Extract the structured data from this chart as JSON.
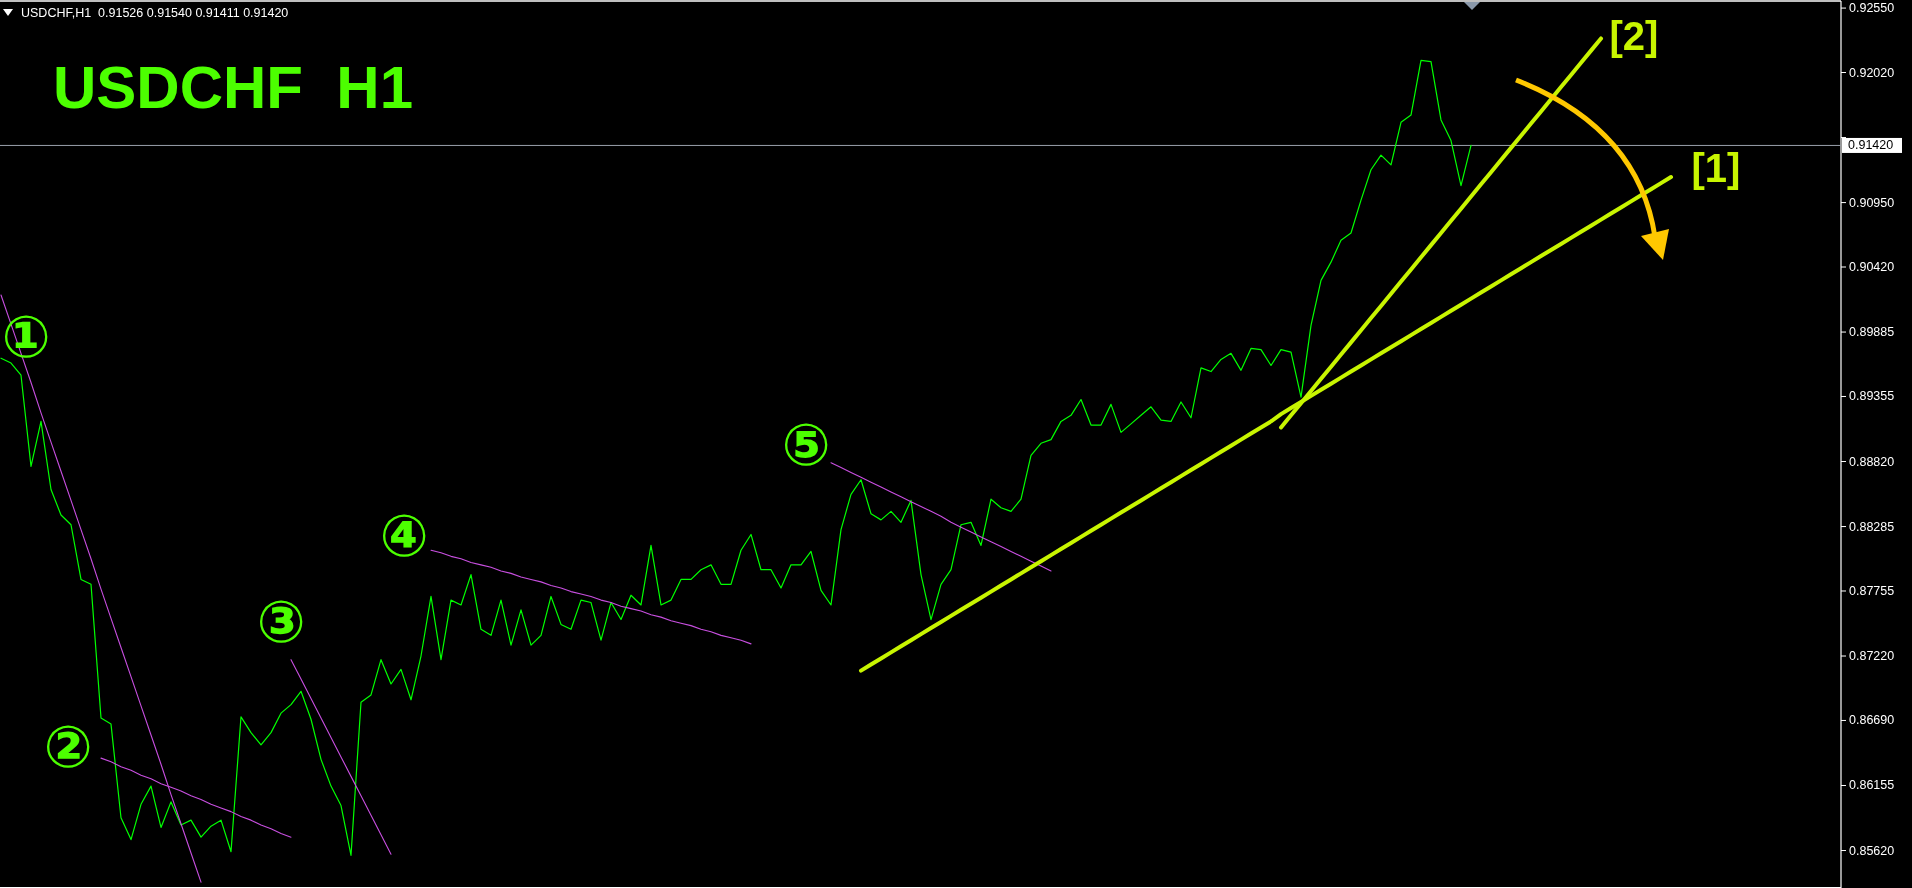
{
  "chart_data": {
    "type": "line",
    "title": "USDCHF  H1",
    "annotations": [
      "USDCHF,H1  0.91526 0.91540 0.91411 0.91420"
    ],
    "categories": [
      null,
      null,
      null,
      null,
      null,
      null,
      null,
      null,
      null,
      null,
      null,
      null,
      null,
      null,
      null,
      null,
      null,
      null,
      null,
      null,
      null,
      null,
      null,
      null,
      null,
      null,
      null,
      null,
      null,
      null,
      null,
      null,
      null,
      null,
      null,
      null,
      null,
      null,
      null,
      null,
      null,
      null,
      null,
      null,
      null,
      null,
      null,
      null,
      null,
      null,
      null,
      null,
      null,
      null,
      null,
      null,
      null,
      null,
      null,
      null,
      null,
      null,
      null,
      null,
      null,
      null,
      null,
      null,
      null,
      null,
      null,
      null,
      null,
      null,
      null,
      null,
      null,
      null,
      null,
      null,
      null,
      null,
      null,
      null,
      null,
      null,
      null,
      null,
      null,
      null,
      null,
      null,
      null,
      null,
      null,
      null,
      null,
      null,
      null,
      null,
      null,
      null,
      null,
      null,
      null,
      null,
      null,
      null,
      null,
      null,
      null,
      null,
      null,
      null,
      null,
      null,
      null,
      null,
      null,
      null,
      null,
      null,
      null,
      null,
      null,
      null,
      null,
      null,
      null,
      null,
      null,
      null,
      null,
      null,
      null,
      null,
      null,
      null,
      null,
      null,
      null,
      null,
      null,
      null,
      null,
      null,
      null,
      null,
      null,
      null,
      null,
      null,
      null,
      null,
      null,
      null,
      null,
      null,
      null,
      null,
      null,
      null,
      null,
      null,
      null,
      null,
      null,
      null,
      null,
      null,
      null,
      null,
      null,
      null,
      null,
      null,
      null,
      null,
      null,
      null,
      null,
      null,
      null,
      null,
      null
    ],
    "series": [
      {
        "color": "#00ff00",
        "values": [
          0.8967,
          0.8963,
          0.8953,
          0.8878,
          0.8915,
          0.8859,
          0.8838,
          0.883,
          0.8785,
          0.8781,
          0.8671,
          0.8666,
          0.8589,
          0.8571,
          0.86,
          0.8615,
          0.8581,
          0.8602,
          0.8583,
          0.8587,
          0.8573,
          0.8582,
          0.8587,
          0.8561,
          0.8672,
          0.8659,
          0.8649,
          0.8659,
          0.8675,
          0.8682,
          0.8693,
          0.867,
          0.8637,
          0.8615,
          0.8599,
          0.8558,
          0.8684,
          0.869,
          0.8719,
          0.8699,
          0.8711,
          0.8686,
          0.8722,
          0.8771,
          0.8719,
          0.8768,
          0.8764,
          0.8789,
          0.8744,
          0.8739,
          0.8768,
          0.8731,
          0.876,
          0.8731,
          0.8739,
          0.8771,
          0.8748,
          0.8744,
          0.8768,
          0.8766,
          0.8735,
          0.8766,
          0.8752,
          0.8772,
          0.8764,
          0.8813,
          0.8764,
          0.8768,
          0.8785,
          0.8785,
          0.8793,
          0.8797,
          0.8781,
          0.8781,
          0.8809,
          0.8822,
          0.8793,
          0.8793,
          0.8778,
          0.8797,
          0.8797,
          0.8808,
          0.8776,
          0.8764,
          0.8826,
          0.8855,
          0.8867,
          0.8839,
          0.8834,
          0.8841,
          0.8832,
          0.885,
          0.8789,
          0.8752,
          0.8781,
          0.8793,
          0.883,
          0.8832,
          0.8813,
          0.8851,
          0.8844,
          0.8841,
          0.8851,
          0.8887,
          0.8897,
          0.89,
          0.8915,
          0.892,
          0.8933,
          0.8912,
          0.8912,
          0.8929,
          0.8906,
          0.8913,
          0.892,
          0.8927,
          0.8916,
          0.8915,
          0.8931,
          0.8918,
          0.8959,
          0.8956,
          0.8966,
          0.8971,
          0.8957,
          0.8975,
          0.8974,
          0.8961,
          0.8974,
          0.8972,
          0.8935,
          0.8994,
          0.9031,
          0.9046,
          0.9064,
          0.907,
          0.9097,
          0.9122,
          0.9134,
          0.9126,
          0.9161,
          0.9167,
          0.9212,
          0.9211,
          0.9163,
          0.9146,
          0.9109,
          0.9142,
          null,
          null,
          null,
          null,
          null,
          null,
          null,
          null,
          null,
          null,
          null,
          null,
          null,
          null,
          null,
          null,
          null,
          null,
          null,
          null,
          null,
          null,
          null,
          null,
          null,
          null,
          null,
          null,
          null,
          null,
          null,
          null,
          null,
          null,
          null,
          null,
          null
        ]
      },
      {
        "name": "①",
        "color": "#c84fe0",
        "values": [
          0.9019,
          0.8995,
          0.8971,
          0.8947,
          0.8922,
          0.8898,
          0.8874,
          0.885,
          0.8826,
          0.8802,
          0.8777,
          0.8753,
          0.8729,
          0.8705,
          0.8681,
          0.8657,
          0.8633,
          0.8608,
          0.8584,
          0.856,
          0.8536,
          null,
          null,
          null,
          null,
          null,
          null,
          null,
          null,
          null,
          null,
          null,
          null,
          null,
          null,
          null,
          null,
          null,
          null,
          null,
          null,
          null,
          null,
          null,
          null,
          null,
          null,
          null,
          null,
          null,
          null,
          null,
          null,
          null,
          null,
          null,
          null,
          null,
          null,
          null,
          null,
          null,
          null,
          null,
          null,
          null,
          null,
          null,
          null,
          null,
          null,
          null,
          null,
          null,
          null,
          null,
          null,
          null,
          null,
          null,
          null,
          null,
          null,
          null,
          null,
          null,
          null,
          null,
          null,
          null,
          null,
          null,
          null,
          null,
          null,
          null,
          null,
          null,
          null,
          null,
          null,
          null,
          null,
          null,
          null,
          null,
          null,
          null,
          null,
          null,
          null,
          null,
          null,
          null,
          null,
          null,
          null,
          null,
          null,
          null,
          null,
          null,
          null,
          null,
          null,
          null,
          null,
          null,
          null,
          null,
          null,
          null,
          null,
          null,
          null,
          null,
          null,
          null,
          null,
          null,
          null,
          null,
          null,
          null,
          null,
          null,
          null,
          null,
          null,
          null,
          null,
          null,
          null,
          null,
          null,
          null,
          null,
          null,
          null,
          null,
          null,
          null,
          null,
          null,
          null,
          null,
          null,
          null,
          null,
          null,
          null,
          null,
          null,
          null,
          null,
          null,
          null,
          null,
          null,
          null,
          null,
          null,
          null,
          null,
          null
        ]
      },
      {
        "name": "②",
        "color": "#c84fe0",
        "values": [
          null,
          null,
          null,
          null,
          null,
          null,
          null,
          null,
          null,
          null,
          0.8638,
          0.8635,
          0.8631,
          0.8628,
          0.8624,
          0.8621,
          0.8617,
          0.8614,
          0.8611,
          0.8607,
          0.8604,
          0.86,
          0.8597,
          0.8594,
          0.859,
          0.8587,
          0.8583,
          0.858,
          0.8576,
          0.8573,
          null,
          null,
          null,
          null,
          null,
          null,
          null,
          null,
          null,
          null,
          null,
          null,
          null,
          null,
          null,
          null,
          null,
          null,
          null,
          null,
          null,
          null,
          null,
          null,
          null,
          null,
          null,
          null,
          null,
          null,
          null,
          null,
          null,
          null,
          null,
          null,
          null,
          null,
          null,
          null,
          null,
          null,
          null,
          null,
          null,
          null,
          null,
          null,
          null,
          null,
          null,
          null,
          null,
          null,
          null,
          null,
          null,
          null,
          null,
          null,
          null,
          null,
          null,
          null,
          null,
          null,
          null,
          null,
          null,
          null,
          null,
          null,
          null,
          null,
          null,
          null,
          null,
          null,
          null,
          null,
          null,
          null,
          null,
          null,
          null,
          null,
          null,
          null,
          null,
          null,
          null,
          null,
          null,
          null,
          null,
          null,
          null,
          null,
          null,
          null,
          null,
          null,
          null,
          null,
          null,
          null,
          null,
          null,
          null,
          null,
          null,
          null,
          null,
          null,
          null,
          null,
          null,
          null,
          null,
          null,
          null,
          null,
          null,
          null,
          null,
          null,
          null,
          null,
          null,
          null,
          null,
          null,
          null,
          null,
          null,
          null,
          null,
          null,
          null,
          null,
          null,
          null,
          null,
          null,
          null,
          null,
          null,
          null,
          null,
          null,
          null,
          null,
          null,
          null,
          null
        ]
      },
      {
        "name": "③",
        "color": "#c84fe0",
        "values": [
          null,
          null,
          null,
          null,
          null,
          null,
          null,
          null,
          null,
          null,
          null,
          null,
          null,
          null,
          null,
          null,
          null,
          null,
          null,
          null,
          null,
          null,
          null,
          null,
          null,
          null,
          null,
          null,
          null,
          0.8719,
          0.8703,
          0.8687,
          0.8671,
          0.8655,
          0.8639,
          0.8623,
          0.8607,
          0.8591,
          0.8575,
          0.8559,
          null,
          null,
          null,
          null,
          null,
          null,
          null,
          null,
          null,
          null,
          null,
          null,
          null,
          null,
          null,
          null,
          null,
          null,
          null,
          null,
          null,
          null,
          null,
          null,
          null,
          null,
          null,
          null,
          null,
          null,
          null,
          null,
          null,
          null,
          null,
          null,
          null,
          null,
          null,
          null,
          null,
          null,
          null,
          null,
          null,
          null,
          null,
          null,
          null,
          null,
          null,
          null,
          null,
          null,
          null,
          null,
          null,
          null,
          null,
          null,
          null,
          null,
          null,
          null,
          null,
          null,
          null,
          null,
          null,
          null,
          null,
          null,
          null,
          null,
          null,
          null,
          null,
          null,
          null,
          null,
          null,
          null,
          null,
          null,
          null,
          null,
          null,
          null,
          null,
          null,
          null,
          null,
          null,
          null,
          null,
          null,
          null,
          null,
          null,
          null,
          null,
          null,
          null,
          null,
          null,
          null,
          null,
          null,
          null,
          null,
          null,
          null,
          null,
          null,
          null,
          null,
          null,
          null,
          null,
          null,
          null,
          null,
          null,
          null,
          null,
          null,
          null,
          null,
          null,
          null,
          null,
          null,
          null,
          null,
          null,
          null,
          null,
          null,
          null,
          null,
          null,
          null,
          null,
          null,
          null
        ]
      },
      {
        "name": "④",
        "color": "#c84fe0",
        "values": [
          null,
          null,
          null,
          null,
          null,
          null,
          null,
          null,
          null,
          null,
          null,
          null,
          null,
          null,
          null,
          null,
          null,
          null,
          null,
          null,
          null,
          null,
          null,
          null,
          null,
          null,
          null,
          null,
          null,
          null,
          null,
          null,
          null,
          null,
          null,
          null,
          null,
          null,
          null,
          null,
          null,
          null,
          null,
          0.8809,
          0.8807,
          0.8804,
          0.8802,
          0.8799,
          0.8797,
          0.8795,
          0.8792,
          0.879,
          0.8787,
          0.8785,
          0.8783,
          0.878,
          0.8778,
          0.8775,
          0.8773,
          0.8771,
          0.8768,
          0.8766,
          0.8763,
          0.8761,
          0.8759,
          0.8756,
          0.8754,
          0.8751,
          0.8749,
          0.8747,
          0.8744,
          0.8742,
          0.8739,
          0.8737,
          0.8735,
          0.8732,
          null,
          null,
          null,
          null,
          null,
          null,
          null,
          null,
          null,
          null,
          null,
          null,
          null,
          null,
          null,
          null,
          null,
          null,
          null,
          null,
          null,
          null,
          null,
          null,
          null,
          null,
          null,
          null,
          null,
          null,
          null,
          null,
          null,
          null,
          null,
          null,
          null,
          null,
          null,
          null,
          null,
          null,
          null,
          null,
          null,
          null,
          null,
          null,
          null,
          null,
          null,
          null,
          null,
          null,
          null,
          null,
          null,
          null,
          null,
          null,
          null,
          null,
          null,
          null,
          null,
          null,
          null,
          null,
          null,
          null,
          null,
          null,
          null,
          null,
          null,
          null,
          null,
          null,
          null,
          null,
          null,
          null,
          null,
          null,
          null,
          null,
          null,
          null,
          null,
          null,
          null,
          null,
          null,
          null,
          null,
          null,
          null,
          null,
          null,
          null,
          null,
          null,
          null,
          null,
          null,
          null,
          null,
          null,
          null
        ]
      },
      {
        "name": "⑤",
        "color": "#c84fe0",
        "values": [
          null,
          null,
          null,
          null,
          null,
          null,
          null,
          null,
          null,
          null,
          null,
          null,
          null,
          null,
          null,
          null,
          null,
          null,
          null,
          null,
          null,
          null,
          null,
          null,
          null,
          null,
          null,
          null,
          null,
          null,
          null,
          null,
          null,
          null,
          null,
          null,
          null,
          null,
          null,
          null,
          null,
          null,
          null,
          null,
          null,
          null,
          null,
          null,
          null,
          null,
          null,
          null,
          null,
          null,
          null,
          null,
          null,
          null,
          null,
          null,
          null,
          null,
          null,
          null,
          null,
          null,
          null,
          null,
          null,
          null,
          null,
          null,
          null,
          null,
          null,
          null,
          null,
          null,
          null,
          null,
          null,
          null,
          null,
          0.8881,
          0.8877,
          0.8873,
          0.8869,
          0.8865,
          0.8861,
          0.8857,
          0.8853,
          0.8849,
          0.8845,
          0.8841,
          0.8837,
          0.8832,
          0.8828,
          0.8824,
          0.882,
          0.8816,
          0.8812,
          0.8808,
          0.8804,
          0.88,
          0.8796,
          0.8792,
          null,
          null,
          null,
          null,
          null,
          null,
          null,
          null,
          null,
          null,
          null,
          null,
          null,
          null,
          null,
          null,
          null,
          null,
          null,
          null,
          null,
          null,
          null,
          null,
          null,
          null,
          null,
          null,
          null,
          null,
          null,
          null,
          null,
          null,
          null,
          null,
          null,
          null,
          null,
          null,
          null,
          null,
          null,
          null,
          null,
          null,
          null,
          null,
          null,
          null,
          null,
          null,
          null,
          null,
          null,
          null,
          null,
          null,
          null,
          null,
          null,
          null,
          null,
          null,
          null,
          null,
          null,
          null,
          null,
          null,
          null,
          null,
          null,
          null,
          null,
          null,
          null,
          null,
          null
        ]
      },
      {
        "name": "[1]",
        "color": "#c8f500",
        "values": [
          null,
          null,
          null,
          null,
          null,
          null,
          null,
          null,
          null,
          null,
          null,
          null,
          null,
          null,
          null,
          null,
          null,
          null,
          null,
          null,
          null,
          null,
          null,
          null,
          null,
          null,
          null,
          null,
          null,
          null,
          null,
          null,
          null,
          null,
          null,
          null,
          null,
          null,
          null,
          null,
          null,
          null,
          null,
          null,
          null,
          null,
          null,
          null,
          null,
          null,
          null,
          null,
          null,
          null,
          null,
          null,
          null,
          null,
          null,
          null,
          null,
          null,
          null,
          null,
          null,
          null,
          null,
          null,
          null,
          null,
          null,
          null,
          null,
          null,
          null,
          null,
          null,
          null,
          null,
          null,
          null,
          null,
          null,
          null,
          null,
          null,
          0.871,
          0.8715,
          0.872,
          0.8725,
          0.873,
          0.8735,
          0.874,
          0.8745,
          0.875,
          0.8755,
          0.876,
          0.8765,
          0.877,
          0.8775,
          0.878,
          0.8785,
          0.879,
          0.8795,
          0.88,
          0.8805,
          0.881,
          0.8815,
          0.882,
          0.8825,
          0.883,
          0.8835,
          0.884,
          0.8845,
          0.885,
          0.8855,
          0.886,
          0.8865,
          0.887,
          0.8875,
          0.888,
          0.8885,
          0.889,
          0.8895,
          0.89,
          0.8905,
          0.891,
          0.8915,
          0.8921,
          0.8926,
          0.8931,
          0.8936,
          0.8941,
          0.8946,
          0.8951,
          0.8956,
          0.8961,
          0.8966,
          0.8971,
          0.8976,
          0.8981,
          0.8986,
          0.8991,
          0.8996,
          0.9001,
          0.9006,
          0.9011,
          0.9016,
          0.9021,
          0.9026,
          0.9031,
          0.9036,
          0.9041,
          0.9046,
          0.9051,
          0.9056,
          0.9061,
          0.9066,
          0.9071,
          0.9076,
          0.9081,
          0.9086,
          0.9091,
          0.9096,
          0.9101,
          0.9106,
          0.9111,
          0.9116,
          null,
          null,
          null,
          null,
          null,
          null,
          null,
          null,
          null,
          null,
          null,
          null,
          null,
          null,
          null,
          null,
          null
        ]
      },
      {
        "name": "[2]",
        "color": "#c8f500",
        "values": [
          null,
          null,
          null,
          null,
          null,
          null,
          null,
          null,
          null,
          null,
          null,
          null,
          null,
          null,
          null,
          null,
          null,
          null,
          null,
          null,
          null,
          null,
          null,
          null,
          null,
          null,
          null,
          null,
          null,
          null,
          null,
          null,
          null,
          null,
          null,
          null,
          null,
          null,
          null,
          null,
          null,
          null,
          null,
          null,
          null,
          null,
          null,
          null,
          null,
          null,
          null,
          null,
          null,
          null,
          null,
          null,
          null,
          null,
          null,
          null,
          null,
          null,
          null,
          null,
          null,
          null,
          null,
          null,
          null,
          null,
          null,
          null,
          null,
          null,
          null,
          null,
          null,
          null,
          null,
          null,
          null,
          null,
          null,
          null,
          null,
          null,
          null,
          null,
          null,
          null,
          null,
          null,
          null,
          null,
          null,
          null,
          null,
          null,
          null,
          null,
          null,
          null,
          null,
          null,
          null,
          null,
          null,
          null,
          null,
          null,
          null,
          null,
          null,
          null,
          null,
          null,
          null,
          null,
          null,
          null,
          null,
          null,
          null,
          null,
          null,
          null,
          null,
          null,
          0.891,
          0.892,
          0.893,
          0.894,
          0.895,
          0.896,
          0.897,
          0.898,
          0.899,
          0.9,
          0.901,
          0.902,
          0.903,
          0.904,
          0.905,
          0.906,
          0.907,
          0.908,
          0.909,
          0.91,
          0.911,
          0.912,
          0.913,
          0.914,
          0.915,
          0.916,
          0.917,
          0.918,
          0.919,
          0.92,
          0.921,
          0.922,
          0.923,
          null,
          null,
          null,
          null,
          null,
          null,
          null,
          null,
          null,
          null,
          null,
          null,
          null,
          null,
          null,
          null,
          null,
          null,
          null,
          null,
          null,
          null,
          null,
          null
        ]
      }
    ],
    "ylim": [
      0.8532,
      0.926
    ],
    "yticks": [
      {
        "value": 0.9255,
        "label": "0.92550"
      },
      {
        "value": 0.9202,
        "label": "0.92020"
      },
      {
        "value": 0.91485,
        "label": null
      },
      {
        "value": 0.9095,
        "label": "0.90950"
      },
      {
        "value": 0.9042,
        "label": "0.90420"
      },
      {
        "value": 0.89885,
        "label": "0.89885"
      },
      {
        "value": 0.89355,
        "label": "0.89355"
      },
      {
        "value": 0.8882,
        "label": "0.88820"
      },
      {
        "value": 0.88285,
        "label": "0.88285"
      },
      {
        "value": 0.87755,
        "label": "0.87755"
      },
      {
        "value": 0.8722,
        "label": "0.87220"
      },
      {
        "value": 0.8669,
        "label": "0.86690"
      },
      {
        "value": 0.86155,
        "label": "0.86155"
      },
      {
        "value": 0.8562,
        "label": "0.85620"
      }
    ],
    "ref_lines": [
      {
        "axis": "y",
        "value": 0.9142,
        "label": "0.91420",
        "color": "#9aa0aa"
      }
    ]
  }
}
